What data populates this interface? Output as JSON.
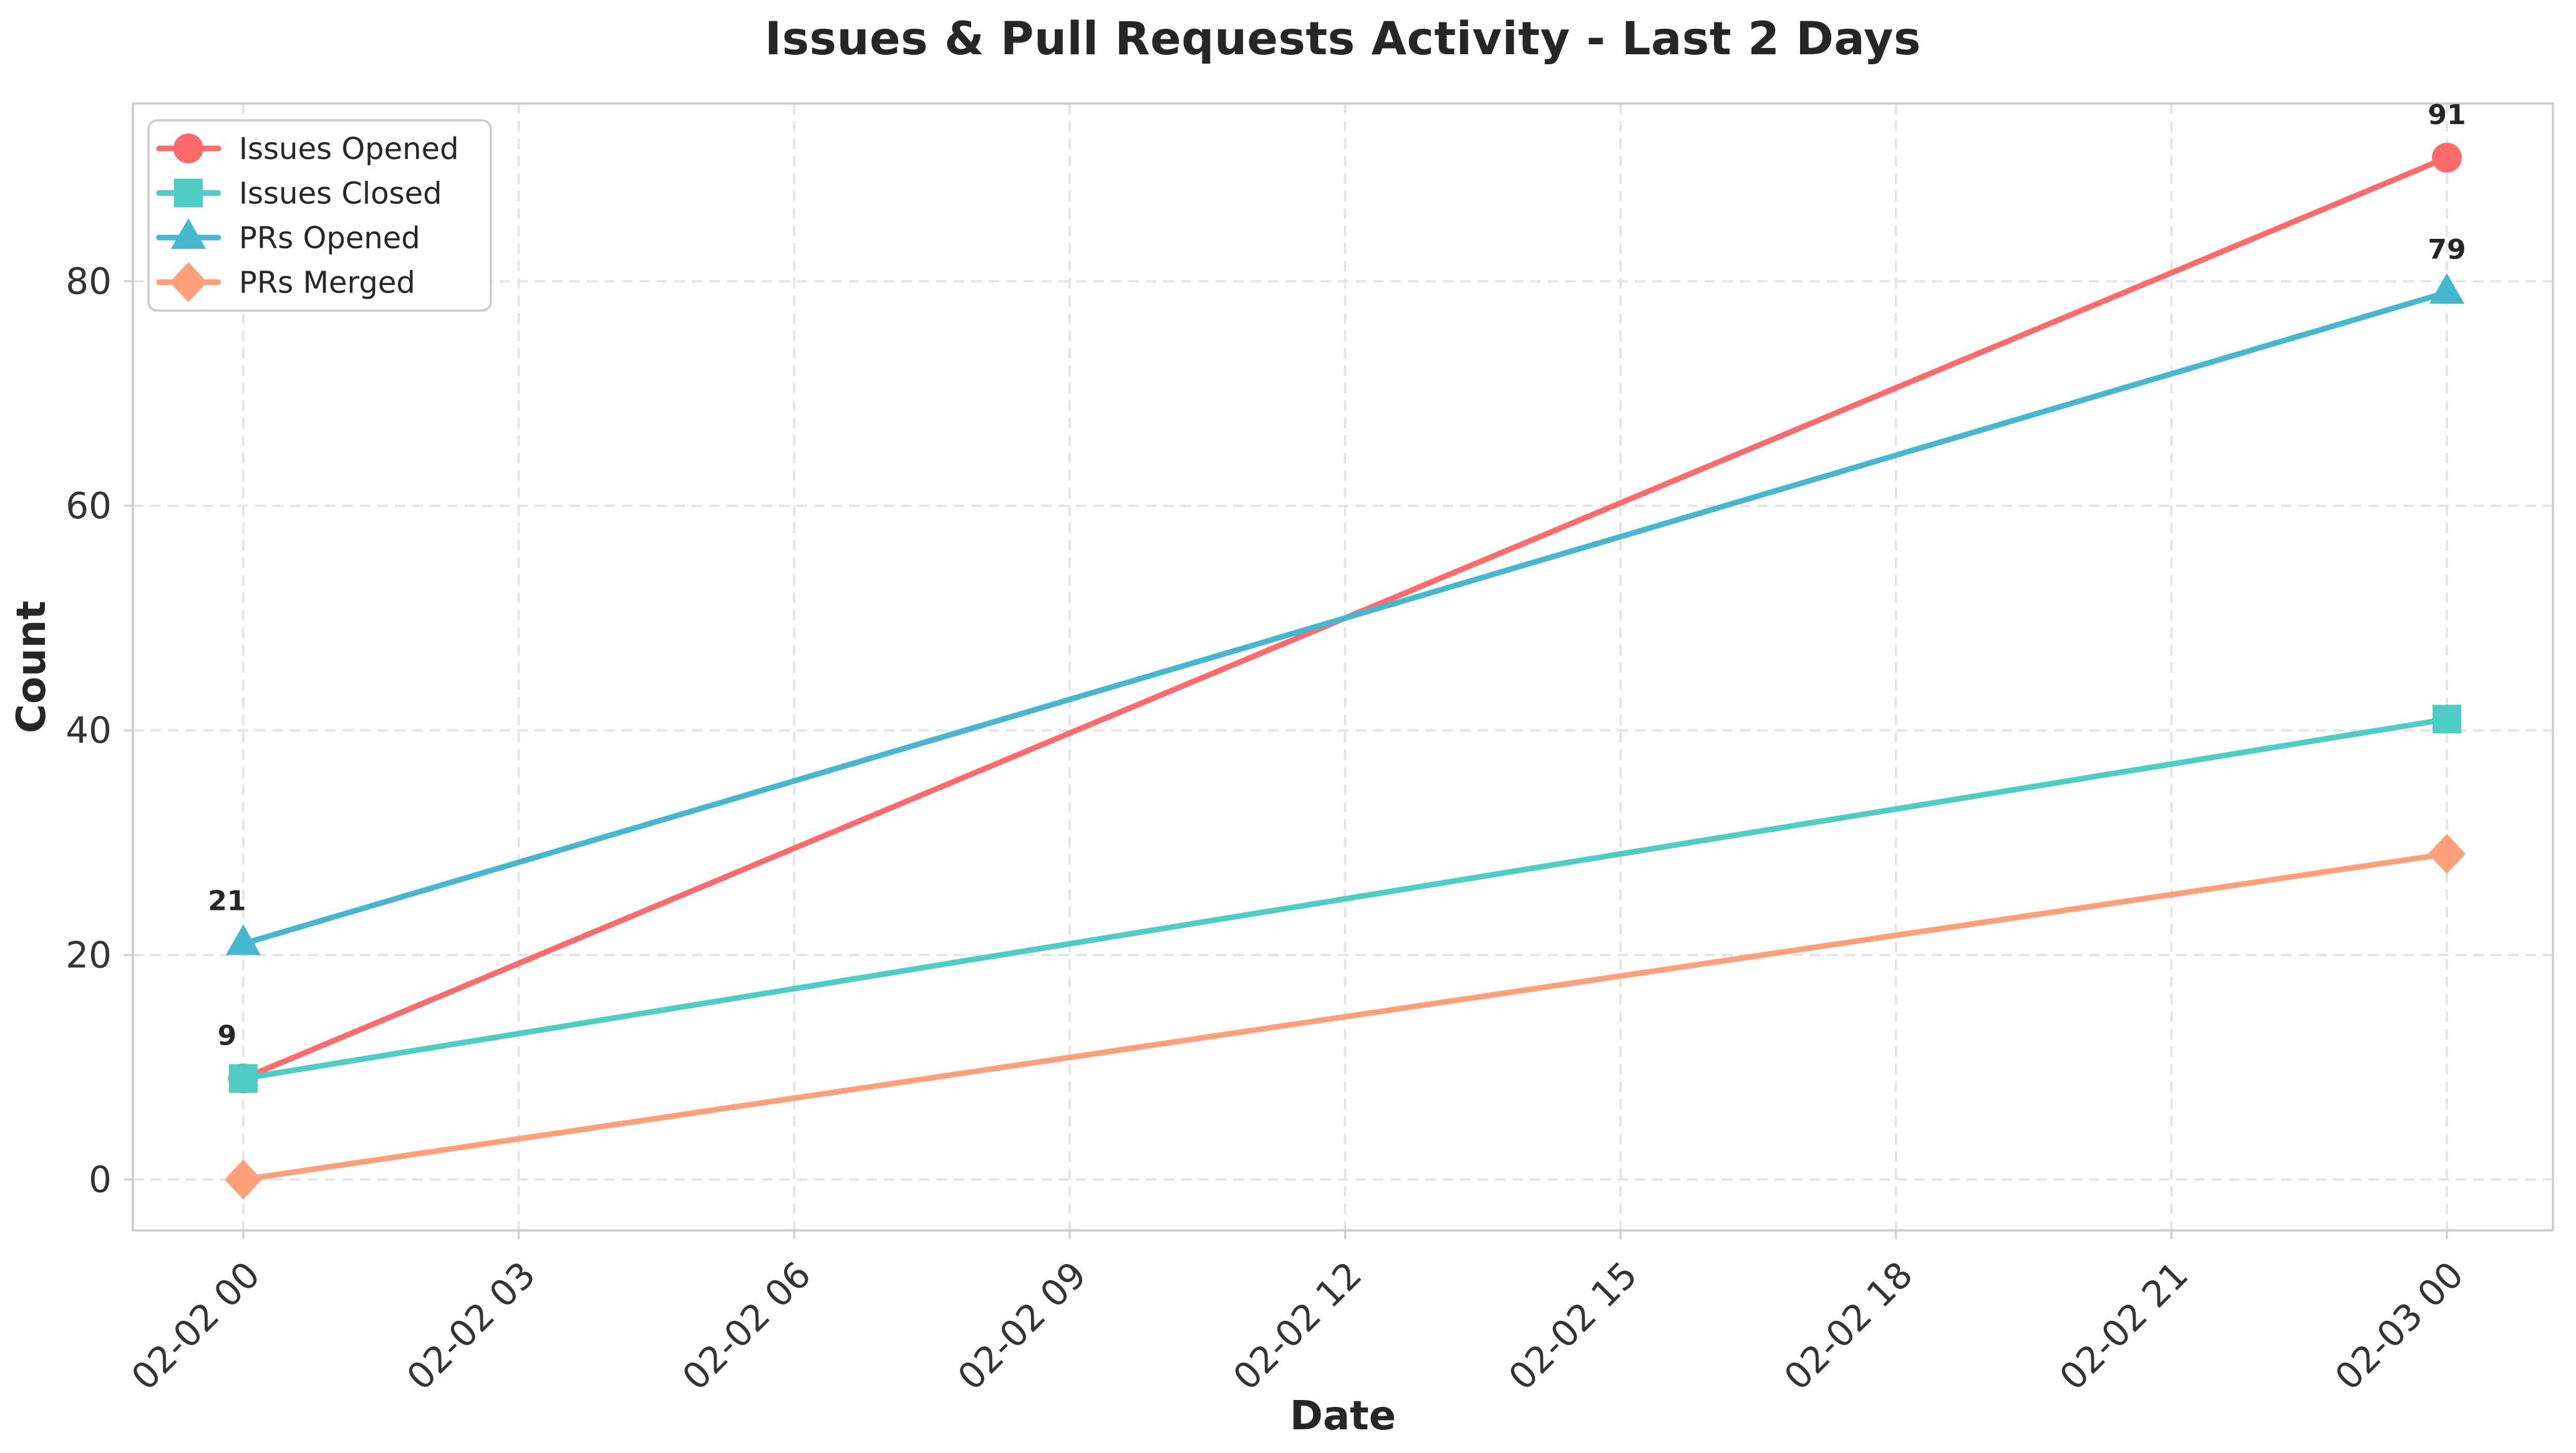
{
  "chart_data": {
    "type": "line",
    "title": "Issues & Pull Requests Activity - Last 2 Days",
    "xlabel": "Date",
    "ylabel": "Count",
    "x_tick_labels": [
      "02-02 00",
      "02-02 03",
      "02-02 06",
      "02-02 09",
      "02-02 12",
      "02-02 15",
      "02-02 18",
      "02-02 21",
      "02-03 00"
    ],
    "y_tick_labels": [
      "0",
      "20",
      "40",
      "60",
      "80"
    ],
    "y_tick_values": [
      0,
      20,
      40,
      60,
      80
    ],
    "ylim": [
      -4.55,
      95.55
    ],
    "x_data_positions": [
      0,
      8
    ],
    "grid": true,
    "grid_style": "dashed",
    "legend_position": "upper left",
    "series": [
      {
        "name": "Issues Opened",
        "color": "#FF6B6B",
        "marker": "circle",
        "values": [
          9,
          91
        ],
        "point_labels": [
          "9",
          "91"
        ]
      },
      {
        "name": "Issues Closed",
        "color": "#4ECDC4",
        "marker": "square",
        "values": [
          9,
          41
        ],
        "point_labels": [
          null,
          null
        ]
      },
      {
        "name": "PRs Opened",
        "color": "#45B7D1",
        "marker": "triangle",
        "values": [
          21,
          79
        ],
        "point_labels": [
          "21",
          "79"
        ]
      },
      {
        "name": "PRs Merged",
        "color": "#FFA07A",
        "marker": "diamond",
        "values": [
          0,
          29
        ],
        "point_labels": [
          null,
          null
        ]
      }
    ],
    "colors": {
      "grid": "#E3E3E3",
      "spine": "#CCCCCC",
      "tick_label": "#333333",
      "title": "#262626",
      "axis_label": "#262626",
      "annotation": "#262626",
      "legend_border": "#CCCCCC",
      "legend_text": "#262626",
      "background": "#FFFFFF"
    }
  }
}
